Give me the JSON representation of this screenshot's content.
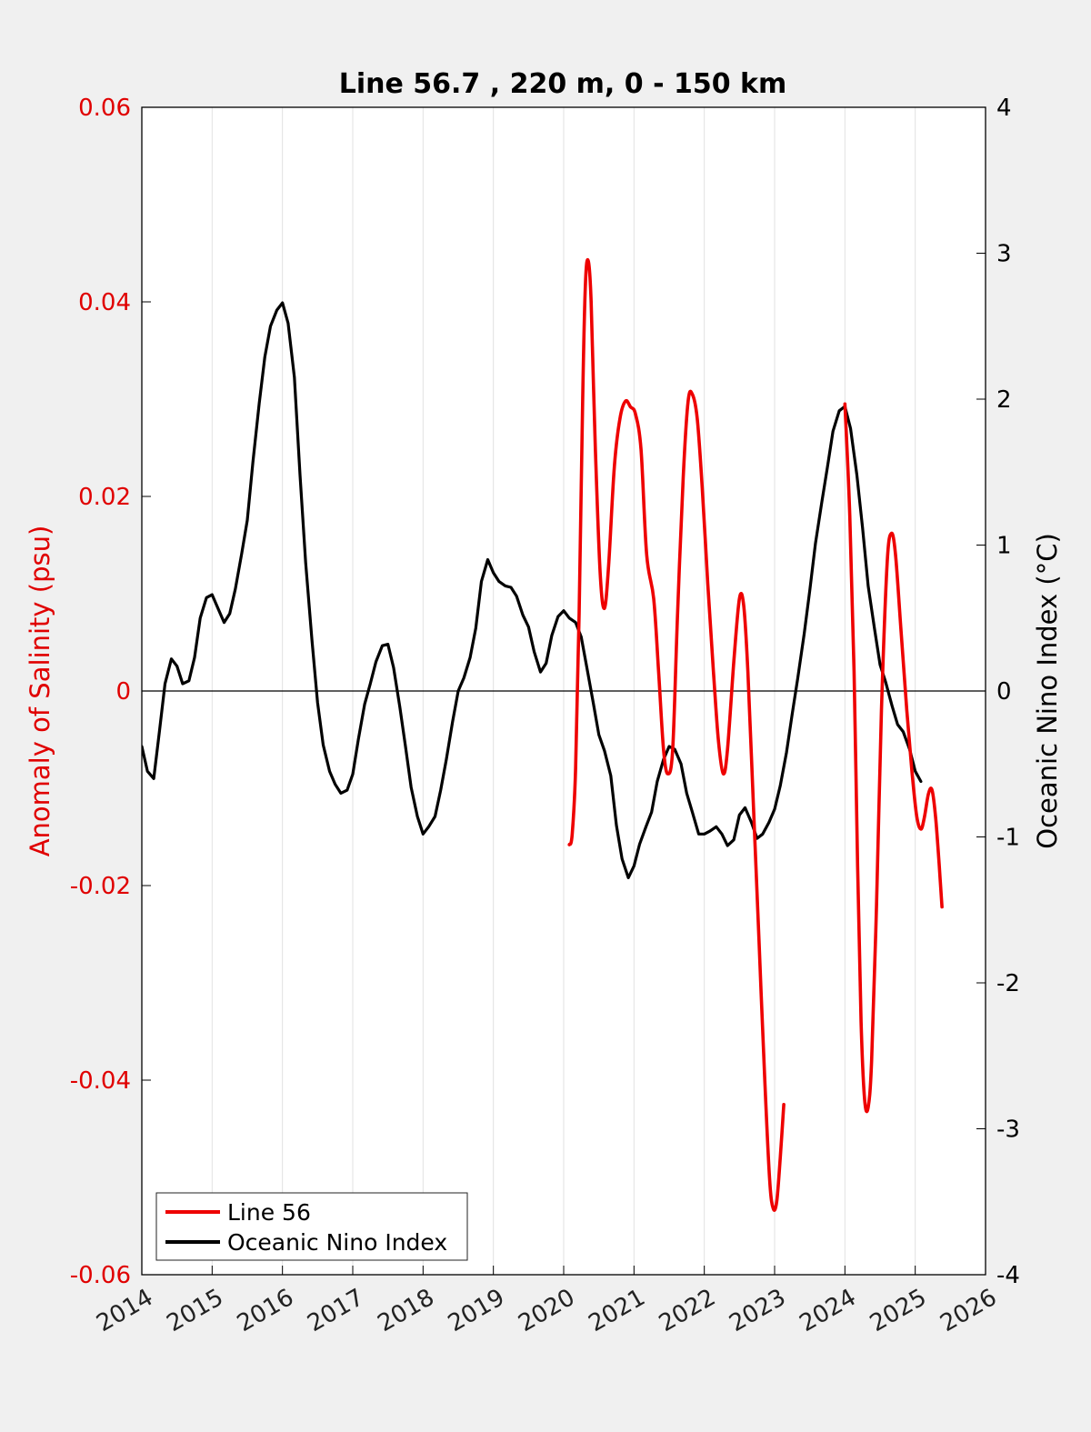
{
  "chart_data": {
    "type": "line",
    "title": "Line 56.7 , 220 m, 0 - 150 km",
    "ylabel_left": "Anomaly of Salinity (psu)",
    "ylabel_right": "Oceanic Nino Index (°C)",
    "xlim": [
      2014,
      2026
    ],
    "ylim_left": [
      -0.06,
      0.06
    ],
    "ylim_right": [
      -4,
      4
    ],
    "xticks": [
      "2014",
      "2015",
      "2016",
      "2017",
      "2018",
      "2019",
      "2020",
      "2021",
      "2022",
      "2023",
      "2024",
      "2025",
      "2026"
    ],
    "yticks_left": [
      "0.06",
      "0.04",
      "0.02",
      "0",
      "-0.02",
      "-0.04",
      "-0.06"
    ],
    "yticks_right": [
      "4",
      "3",
      "2",
      "1",
      "0",
      "-1",
      "-2",
      "-3",
      "-4"
    ],
    "grid": "vertical",
    "legend_position": "bottom-left",
    "series": [
      {
        "name": "Line 56",
        "axis": "left",
        "color": "#ee0000",
        "segments": [
          [
            [
              2020.08,
              -0.0158
            ],
            [
              2020.12,
              -0.0148
            ],
            [
              2020.17,
              -0.008
            ],
            [
              2020.22,
              0.008
            ],
            [
              2020.27,
              0.03
            ],
            [
              2020.31,
              0.042
            ],
            [
              2020.35,
              0.0442
            ],
            [
              2020.39,
              0.04
            ],
            [
              2020.45,
              0.025
            ],
            [
              2020.52,
              0.012
            ],
            [
              2020.58,
              0.0085
            ],
            [
              2020.64,
              0.013
            ],
            [
              2020.72,
              0.023
            ],
            [
              2020.8,
              0.028
            ],
            [
              2020.88,
              0.0298
            ],
            [
              2020.95,
              0.0292
            ],
            [
              2021.02,
              0.0285
            ],
            [
              2021.1,
              0.0248
            ],
            [
              2021.18,
              0.014
            ],
            [
              2021.28,
              0.0095
            ],
            [
              2021.35,
              0.002
            ],
            [
              2021.42,
              -0.006
            ],
            [
              2021.48,
              -0.0085
            ],
            [
              2021.55,
              -0.006
            ],
            [
              2021.62,
              0.008
            ],
            [
              2021.7,
              0.022
            ],
            [
              2021.77,
              0.0298
            ],
            [
              2021.83,
              0.0305
            ],
            [
              2021.9,
              0.028
            ],
            [
              2021.97,
              0.021
            ],
            [
              2022.05,
              0.011
            ],
            [
              2022.13,
              0.002
            ],
            [
              2022.2,
              -0.005
            ],
            [
              2022.27,
              -0.0085
            ],
            [
              2022.33,
              -0.006
            ],
            [
              2022.42,
              0.003
            ],
            [
              2022.5,
              0.0095
            ],
            [
              2022.56,
              0.0088
            ],
            [
              2022.62,
              0.002
            ],
            [
              2022.7,
              -0.012
            ],
            [
              2022.78,
              -0.026
            ],
            [
              2022.86,
              -0.04
            ],
            [
              2022.93,
              -0.0503
            ],
            [
              2022.98,
              -0.0532
            ],
            [
              2023.03,
              -0.0525
            ],
            [
              2023.08,
              -0.048
            ],
            [
              2023.13,
              -0.0425
            ]
          ],
          [
            [
              2024.0,
              0.0295
            ],
            [
              2024.07,
              0.018
            ],
            [
              2024.13,
              0.002
            ],
            [
              2024.18,
              -0.018
            ],
            [
              2024.23,
              -0.034
            ],
            [
              2024.28,
              -0.042
            ],
            [
              2024.33,
              -0.0428
            ],
            [
              2024.38,
              -0.038
            ],
            [
              2024.45,
              -0.022
            ],
            [
              2024.52,
              -0.002
            ],
            [
              2024.6,
              0.013
            ],
            [
              2024.66,
              0.0162
            ],
            [
              2024.72,
              0.014
            ],
            [
              2024.8,
              0.006
            ],
            [
              2024.88,
              -0.002
            ],
            [
              2024.95,
              -0.008
            ],
            [
              2025.02,
              -0.0128
            ],
            [
              2025.08,
              -0.0142
            ],
            [
              2025.13,
              -0.013
            ],
            [
              2025.19,
              -0.0105
            ],
            [
              2025.24,
              -0.0102
            ],
            [
              2025.29,
              -0.013
            ],
            [
              2025.34,
              -0.0178
            ],
            [
              2025.38,
              -0.0222
            ]
          ]
        ]
      },
      {
        "name": "Oceanic Nino Index",
        "axis": "right",
        "color": "#000000",
        "x": [
          2014.0,
          2014.08,
          2014.17,
          2014.25,
          2014.33,
          2014.42,
          2014.5,
          2014.58,
          2014.67,
          2014.75,
          2014.83,
          2014.92,
          2015.0,
          2015.08,
          2015.17,
          2015.25,
          2015.33,
          2015.42,
          2015.5,
          2015.58,
          2015.67,
          2015.75,
          2015.83,
          2015.92,
          2016.0,
          2016.08,
          2016.17,
          2016.25,
          2016.33,
          2016.42,
          2016.5,
          2016.58,
          2016.67,
          2016.75,
          2016.83,
          2016.92,
          2017.0,
          2017.08,
          2017.17,
          2017.25,
          2017.33,
          2017.42,
          2017.5,
          2017.58,
          2017.67,
          2017.75,
          2017.83,
          2017.92,
          2018.0,
          2018.08,
          2018.17,
          2018.25,
          2018.33,
          2018.42,
          2018.5,
          2018.58,
          2018.67,
          2018.75,
          2018.83,
          2018.92,
          2019.0,
          2019.08,
          2019.17,
          2019.25,
          2019.33,
          2019.42,
          2019.5,
          2019.58,
          2019.67,
          2019.75,
          2019.83,
          2019.92,
          2020.0,
          2020.08,
          2020.17,
          2020.25,
          2020.33,
          2020.42,
          2020.5,
          2020.58,
          2020.67,
          2020.75,
          2020.83,
          2020.92,
          2021.0,
          2021.08,
          2021.17,
          2021.25,
          2021.33,
          2021.42,
          2021.5,
          2021.58,
          2021.67,
          2021.75,
          2021.83,
          2021.92,
          2022.0,
          2022.08,
          2022.17,
          2022.25,
          2022.33,
          2022.42,
          2022.5,
          2022.58,
          2022.67,
          2022.75,
          2022.83,
          2022.92,
          2023.0,
          2023.08,
          2023.17,
          2023.25,
          2023.33,
          2023.42,
          2023.5,
          2023.58,
          2023.67,
          2023.75,
          2023.83,
          2023.92,
          2024.0,
          2024.08,
          2024.17,
          2024.25,
          2024.33,
          2024.42,
          2024.5,
          2024.58,
          2024.67,
          2024.75,
          2024.83,
          2024.92,
          2025.0,
          2025.08
        ],
        "values": [
          -0.38,
          -0.55,
          -0.6,
          -0.28,
          0.05,
          0.22,
          0.17,
          0.05,
          0.07,
          0.23,
          0.5,
          0.64,
          0.66,
          0.57,
          0.47,
          0.53,
          0.7,
          0.94,
          1.17,
          1.57,
          1.97,
          2.29,
          2.5,
          2.61,
          2.66,
          2.52,
          2.15,
          1.48,
          0.88,
          0.35,
          -0.08,
          -0.37,
          -0.55,
          -0.64,
          -0.7,
          -0.68,
          -0.57,
          -0.33,
          -0.09,
          0.05,
          0.2,
          0.31,
          0.32,
          0.16,
          -0.11,
          -0.38,
          -0.66,
          -0.86,
          -0.98,
          -0.93,
          -0.86,
          -0.68,
          -0.47,
          -0.21,
          0.0,
          0.09,
          0.23,
          0.43,
          0.75,
          0.9,
          0.81,
          0.75,
          0.72,
          0.71,
          0.65,
          0.52,
          0.44,
          0.27,
          0.13,
          0.19,
          0.38,
          0.51,
          0.55,
          0.5,
          0.47,
          0.37,
          0.16,
          -0.08,
          -0.3,
          -0.41,
          -0.58,
          -0.92,
          -1.15,
          -1.28,
          -1.2,
          -1.05,
          -0.93,
          -0.83,
          -0.62,
          -0.47,
          -0.38,
          -0.4,
          -0.5,
          -0.7,
          -0.83,
          -0.98,
          -0.98,
          -0.96,
          -0.93,
          -0.98,
          -1.06,
          -1.02,
          -0.85,
          -0.8,
          -0.9,
          -1.01,
          -0.98,
          -0.9,
          -0.81,
          -0.65,
          -0.42,
          -0.16,
          0.09,
          0.39,
          0.69,
          1.01,
          1.29,
          1.53,
          1.78,
          1.92,
          1.95,
          1.8,
          1.48,
          1.12,
          0.72,
          0.43,
          0.18,
          0.06,
          -0.1,
          -0.23,
          -0.28,
          -0.4,
          -0.55,
          -0.62
        ]
      }
    ]
  }
}
